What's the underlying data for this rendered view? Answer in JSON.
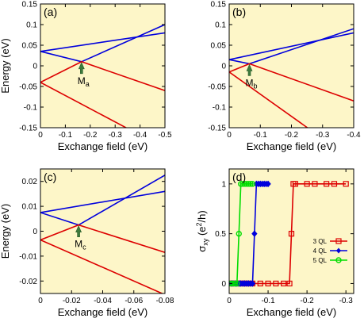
{
  "chart_data": [
    {
      "type": "line",
      "panel_label": "(a)",
      "xlabel": "Exchange field (eV)",
      "ylabel": "Energy (eV)",
      "xlim": [
        0,
        -0.5
      ],
      "ylim": [
        -0.15,
        0.15
      ],
      "xticks": [
        "0",
        "-0.1",
        "-0.2",
        "-0.3",
        "-0.4",
        "-0.5"
      ],
      "xtick_values": [
        0,
        -0.1,
        -0.2,
        -0.3,
        -0.4,
        -0.5
      ],
      "yticks": [
        "-0.15",
        "-0.1",
        "-0.05",
        "0",
        "0.05",
        "0.1",
        "0.15"
      ],
      "ytick_values": [
        -0.15,
        -0.1,
        -0.05,
        0,
        0.05,
        0.1,
        0.15
      ],
      "series": [
        {
          "color": "#0000dd",
          "x": [
            0,
            -0.165,
            -0.5
          ],
          "y": [
            0.035,
            0.01,
            0.1
          ]
        },
        {
          "color": "#0000dd",
          "x": [
            0,
            -0.5
          ],
          "y": [
            0.035,
            0.08
          ]
        },
        {
          "color": "#dd0000",
          "x": [
            0,
            -0.165,
            -0.5
          ],
          "y": [
            -0.04,
            0.01,
            -0.06
          ]
        },
        {
          "color": "#dd0000",
          "x": [
            0,
            -0.5
          ],
          "y": [
            -0.04,
            -0.2
          ]
        }
      ],
      "annotation": {
        "text": "M",
        "subscript": "a",
        "x": -0.165,
        "y": 0.01
      }
    },
    {
      "type": "line",
      "panel_label": "(b)",
      "xlabel": "Exchange field (eV)",
      "ylabel": "",
      "xlim": [
        0,
        -0.4
      ],
      "ylim": [
        -0.15,
        0.15
      ],
      "xticks": [
        "0",
        "-0.1",
        "-0.2",
        "-0.3",
        "-0.4"
      ],
      "xtick_values": [
        0,
        -0.1,
        -0.2,
        -0.3,
        -0.4
      ],
      "yticks": [
        "-0.15",
        "-0.1",
        "-0.05",
        "0",
        "0.05",
        "0.1",
        "0.15"
      ],
      "ytick_values": [
        -0.15,
        -0.1,
        -0.05,
        0,
        0.05,
        0.1,
        0.15
      ],
      "series": [
        {
          "color": "#0000dd",
          "x": [
            0,
            -0.065,
            -0.4
          ],
          "y": [
            0.015,
            0.005,
            0.09
          ]
        },
        {
          "color": "#0000dd",
          "x": [
            0,
            -0.4
          ],
          "y": [
            0.015,
            0.08
          ]
        },
        {
          "color": "#dd0000",
          "x": [
            0,
            -0.065,
            -0.4
          ],
          "y": [
            -0.015,
            0.005,
            -0.085
          ]
        },
        {
          "color": "#dd0000",
          "x": [
            0,
            -0.4
          ],
          "y": [
            -0.015,
            -0.23
          ]
        }
      ],
      "annotation": {
        "text": "M",
        "subscript": "b",
        "x": -0.065,
        "y": 0.005
      }
    },
    {
      "type": "line",
      "panel_label": "(c)",
      "xlabel": "Exchange field (eV)",
      "ylabel": "Energy (eV)",
      "xlim": [
        0,
        -0.08
      ],
      "ylim": [
        -0.025,
        0.025
      ],
      "xticks": [
        "0",
        "-0.02",
        "-0.04",
        "-0.06",
        "-0.08"
      ],
      "xtick_values": [
        0,
        -0.02,
        -0.04,
        -0.06,
        -0.08
      ],
      "yticks": [
        "-0.02",
        "-0.01",
        "0",
        "0.01",
        "0.02"
      ],
      "ytick_values": [
        -0.02,
        -0.01,
        0,
        0.01,
        0.02
      ],
      "series": [
        {
          "color": "#0000dd",
          "x": [
            0,
            -0.0245,
            -0.08
          ],
          "y": [
            0.0075,
            0.0025,
            0.0225
          ]
        },
        {
          "color": "#0000dd",
          "x": [
            0,
            -0.08
          ],
          "y": [
            0.0075,
            0.016
          ]
        },
        {
          "color": "#dd0000",
          "x": [
            0,
            -0.0245,
            -0.08
          ],
          "y": [
            -0.0035,
            0.0025,
            -0.0085
          ]
        },
        {
          "color": "#dd0000",
          "x": [
            0,
            -0.08
          ],
          "y": [
            -0.0035,
            -0.0255
          ]
        }
      ],
      "annotation": {
        "text": "M",
        "subscript": "c",
        "x": -0.0245,
        "y": 0.0025
      }
    },
    {
      "type": "line",
      "panel_label": "(d)",
      "xlabel": "Exchange field (eV)",
      "ylabel": "σ",
      "ylabel_sub": "xy",
      "ylabel_unit": " (e",
      "ylabel_sup": "2",
      "ylabel_end": "/h)",
      "xlim": [
        0,
        -0.32
      ],
      "ylim": [
        -0.1,
        1.15
      ],
      "xticks": [
        "0",
        "-0.1",
        "-0.2",
        "-0.3"
      ],
      "xtick_values": [
        0,
        -0.1,
        -0.2,
        -0.3
      ],
      "yticks": [
        "0",
        "0.5",
        "1"
      ],
      "ytick_values": [
        0,
        0.5,
        1
      ],
      "legend_position": "right",
      "series": [
        {
          "name": "3 QL",
          "color": "#dd0000",
          "marker": "square",
          "x": [
            0,
            -0.005,
            -0.01,
            -0.015,
            -0.02,
            -0.025,
            -0.03,
            -0.035,
            -0.04,
            -0.045,
            -0.05,
            -0.06,
            -0.08,
            -0.1,
            -0.12,
            -0.14,
            -0.155,
            -0.16,
            -0.165,
            -0.17,
            -0.2,
            -0.22,
            -0.25,
            -0.27,
            -0.3
          ],
          "y": [
            0,
            0,
            0,
            0,
            0,
            0,
            0,
            0,
            0,
            0,
            0,
            0,
            0,
            0,
            0,
            0,
            0,
            0.5,
            1,
            1,
            1,
            1,
            1,
            1,
            1
          ]
        },
        {
          "name": "4 QL",
          "color": "#0000dd",
          "marker": "diamond",
          "x": [
            0,
            -0.005,
            -0.01,
            -0.015,
            -0.02,
            -0.025,
            -0.03,
            -0.035,
            -0.04,
            -0.045,
            -0.05,
            -0.055,
            -0.06,
            -0.065,
            -0.07,
            -0.075,
            -0.08,
            -0.085,
            -0.09,
            -0.095,
            -0.1
          ],
          "y": [
            0,
            0,
            0,
            0,
            0,
            0,
            0,
            0,
            0,
            0,
            0,
            0,
            0,
            0.5,
            1,
            1,
            1,
            1,
            1,
            1,
            1
          ]
        },
        {
          "name": "5 QL",
          "color": "#00dd00",
          "marker": "circle",
          "x": [
            0,
            -0.005,
            -0.01,
            -0.015,
            -0.02,
            -0.025,
            -0.03,
            -0.035,
            -0.04,
            -0.045,
            -0.05,
            -0.055,
            -0.06
          ],
          "y": [
            0,
            0,
            0,
            0,
            0,
            0.5,
            1,
            1,
            1,
            1,
            1,
            1,
            1
          ]
        }
      ]
    }
  ]
}
